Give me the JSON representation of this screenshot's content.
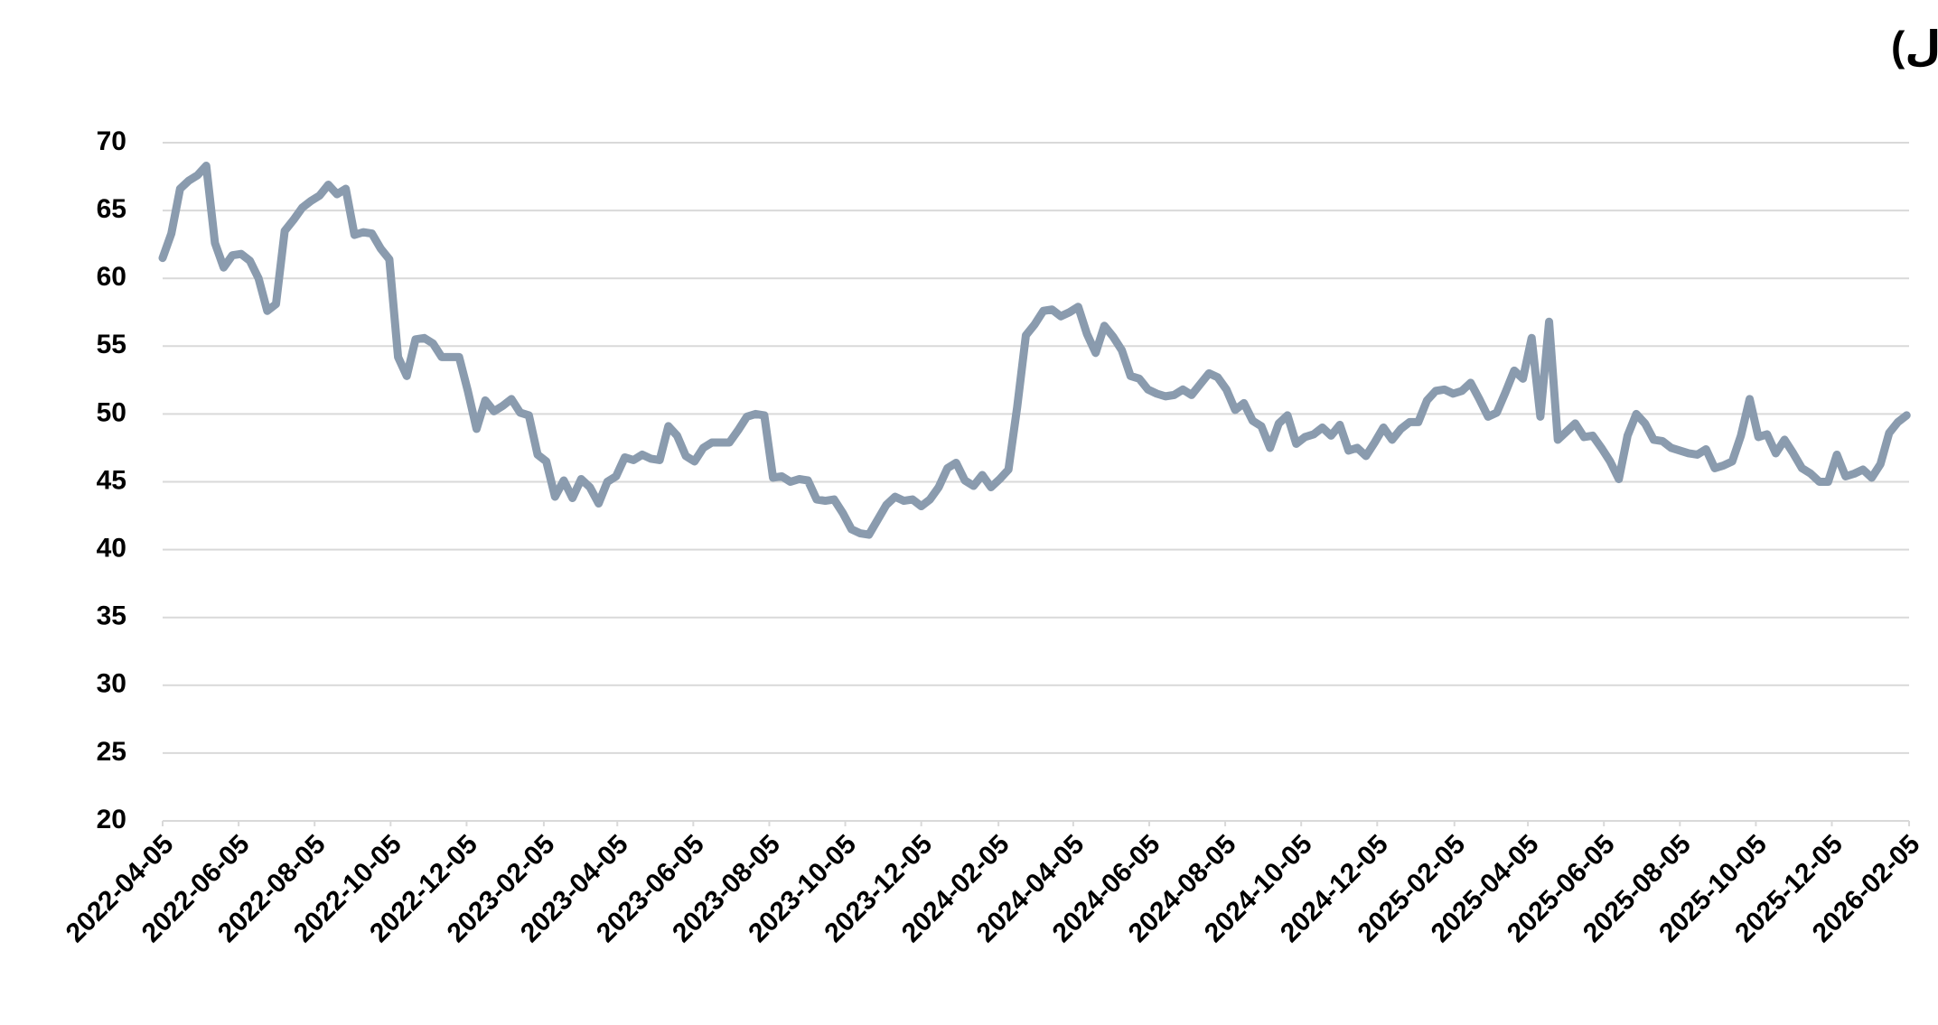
{
  "chart_data": {
    "type": "line",
    "title": "تطور حصة ملكية المستثمرين الأجانب المؤسسين في سوق الأسهم السعودي (مليار ريال)",
    "x": [
      "2022-04-05",
      "2022-04-12",
      "2022-04-19",
      "2022-04-26",
      "2022-05-03",
      "2022-05-10",
      "2022-05-17",
      "2022-05-24",
      "2022-05-31",
      "2022-06-07",
      "2022-06-14",
      "2022-06-21",
      "2022-06-28",
      "2022-07-05",
      "2022-07-12",
      "2022-07-19",
      "2022-07-26",
      "2022-08-02",
      "2022-08-09",
      "2022-08-16",
      "2022-08-23",
      "2022-08-30",
      "2022-09-06",
      "2022-09-13",
      "2022-09-20",
      "2022-09-27",
      "2022-10-04",
      "2022-10-11",
      "2022-10-18",
      "2022-10-25",
      "2022-11-01",
      "2022-11-08",
      "2022-11-15",
      "2022-11-22",
      "2022-11-29",
      "2022-12-06",
      "2022-12-13",
      "2022-12-20",
      "2022-12-27",
      "2023-01-03",
      "2023-01-10",
      "2023-01-17",
      "2023-01-24",
      "2023-01-31",
      "2023-02-07",
      "2023-02-14",
      "2023-02-21",
      "2023-02-28",
      "2023-03-07",
      "2023-03-14",
      "2023-03-21",
      "2023-03-28",
      "2023-04-04",
      "2023-04-11",
      "2023-04-18",
      "2023-04-25",
      "2023-05-02",
      "2023-05-09",
      "2023-05-16",
      "2023-05-23",
      "2023-05-30",
      "2023-06-06",
      "2023-06-13",
      "2023-06-20",
      "2023-06-27",
      "2023-07-04",
      "2023-07-11",
      "2023-07-18",
      "2023-07-25",
      "2023-08-01",
      "2023-08-08",
      "2023-08-15",
      "2023-08-22",
      "2023-08-29",
      "2023-09-05",
      "2023-09-12",
      "2023-09-19",
      "2023-09-26",
      "2023-10-03",
      "2023-10-10",
      "2023-10-17",
      "2023-10-24",
      "2023-10-31",
      "2023-11-07",
      "2023-11-14",
      "2023-11-21",
      "2023-11-28",
      "2023-12-05",
      "2023-12-12",
      "2023-12-19",
      "2023-12-26",
      "2024-01-02",
      "2024-01-09",
      "2024-01-16",
      "2024-01-23",
      "2024-01-30",
      "2024-02-06",
      "2024-02-13",
      "2024-02-20",
      "2024-02-27",
      "2024-03-05",
      "2024-03-12",
      "2024-03-19",
      "2024-03-26",
      "2024-04-02",
      "2024-04-09",
      "2024-04-16",
      "2024-04-23",
      "2024-04-30",
      "2024-05-07",
      "2024-05-14",
      "2024-05-21",
      "2024-05-28",
      "2024-06-04",
      "2024-06-11",
      "2024-06-18",
      "2024-06-25",
      "2024-07-02",
      "2024-07-09",
      "2024-07-16",
      "2024-07-23",
      "2024-07-30",
      "2024-08-06",
      "2024-08-13",
      "2024-08-20",
      "2024-08-27",
      "2024-09-03",
      "2024-09-10",
      "2024-09-17",
      "2024-09-24",
      "2024-10-01",
      "2024-10-08",
      "2024-10-15",
      "2024-10-22",
      "2024-10-29",
      "2024-11-05",
      "2024-11-12",
      "2024-11-19",
      "2024-11-26",
      "2024-12-03",
      "2024-12-10",
      "2024-12-17",
      "2024-12-24",
      "2024-12-31",
      "2025-01-07",
      "2025-01-14",
      "2025-01-21",
      "2025-01-28",
      "2025-02-04",
      "2025-02-11",
      "2025-02-18",
      "2025-02-25",
      "2025-03-04",
      "2025-03-11",
      "2025-03-18",
      "2025-03-25",
      "2025-04-01",
      "2025-04-08",
      "2025-04-15",
      "2025-04-22",
      "2025-04-29",
      "2025-05-06",
      "2025-05-13",
      "2025-05-20",
      "2025-05-27",
      "2025-06-03",
      "2025-06-10",
      "2025-06-17",
      "2025-06-24",
      "2025-07-01",
      "2025-07-08",
      "2025-07-15",
      "2025-07-22",
      "2025-07-29",
      "2025-08-05",
      "2025-08-12",
      "2025-08-19",
      "2025-08-26",
      "2025-09-02",
      "2025-09-09",
      "2025-09-16",
      "2025-09-23",
      "2025-09-30",
      "2025-10-07",
      "2025-10-14",
      "2025-10-21",
      "2025-10-28",
      "2025-11-04",
      "2025-11-11",
      "2025-11-18",
      "2025-11-25",
      "2025-12-02",
      "2025-12-09",
      "2025-12-16",
      "2025-12-23",
      "2025-12-30",
      "2026-01-06",
      "2026-01-13",
      "2026-01-20",
      "2026-01-27",
      "2026-02-03"
    ],
    "series": [
      {
        "color": "#8a9bae",
        "values": [
          61.5,
          63.3,
          66.6,
          67.2,
          67.6,
          68.3,
          62.6,
          60.8,
          61.7,
          61.8,
          61.3,
          60,
          57.6,
          58.1,
          63.5,
          64.3,
          65.2,
          65.7,
          66.1,
          66.9,
          66.2,
          66.6,
          63.2,
          63.4,
          63.3,
          62.2,
          61.4,
          54.2,
          52.8,
          55.5,
          55.6,
          55.2,
          54.2,
          54.2,
          54.2,
          51.7,
          48.9,
          51,
          50.2,
          50.6,
          51.1,
          50.1,
          49.9,
          47,
          46.5,
          43.9,
          45.1,
          43.8,
          45.2,
          44.6,
          43.4,
          45,
          45.4,
          46.8,
          46.6,
          47,
          46.7,
          46.6,
          49.1,
          48.4,
          46.9,
          46.5,
          47.5,
          47.9,
          47.9,
          47.9,
          48.8,
          49.8,
          50,
          49.9,
          45.3,
          45.4,
          45,
          45.2,
          45.1,
          43.7,
          43.6,
          43.7,
          42.7,
          41.5,
          41.2,
          41.1,
          42.2,
          43.3,
          43.9,
          43.6,
          43.7,
          43.2,
          43.7,
          44.6,
          46,
          46.4,
          45.1,
          44.7,
          45.5,
          44.6,
          45.2,
          45.9,
          50.5,
          55.8,
          56.6,
          57.6,
          57.7,
          57.2,
          57.5,
          57.9,
          55.9,
          54.5,
          56.5,
          55.7,
          54.7,
          52.8,
          52.6,
          51.8,
          51.5,
          51.3,
          51.4,
          51.8,
          51.4,
          52.2,
          53,
          52.7,
          51.8,
          50.3,
          50.8,
          49.5,
          49.1,
          47.5,
          49.3,
          49.9,
          47.8,
          48.3,
          48.5,
          49,
          48.4,
          49.2,
          47.3,
          47.5,
          46.9,
          47.9,
          49,
          48.1,
          48.9,
          49.4,
          49.4,
          51,
          51.7,
          51.8,
          51.5,
          51.7,
          52.3,
          51.1,
          49.8,
          50.1,
          51.6,
          53.2,
          52.6,
          55.6,
          49.8,
          56.8,
          48.1,
          48.7,
          49.3,
          48.3,
          48.4,
          47.5,
          46.5,
          45.2,
          48.4,
          50,
          49.3,
          48.1,
          48,
          47.5,
          47.3,
          47.1,
          47,
          47.4,
          46,
          46.2,
          46.5,
          48.4,
          51.1,
          48.3,
          48.5,
          47.1,
          48.1,
          47.1,
          46,
          45.6,
          45,
          45,
          47,
          45.4,
          45.6,
          45.9,
          45.3,
          46.3,
          48.6,
          49.4,
          49.9
        ]
      }
    ],
    "xlim": [
      "2022-04-05",
      "2026-02-05"
    ],
    "xticks": [
      "2022-04-05",
      "2022-06-05",
      "2022-08-05",
      "2022-10-05",
      "2022-12-05",
      "2023-02-05",
      "2023-04-05",
      "2023-06-05",
      "2023-08-05",
      "2023-10-05",
      "2023-12-05",
      "2024-02-05",
      "2024-04-05",
      "2024-06-05",
      "2024-08-05",
      "2024-10-05",
      "2024-12-05",
      "2025-02-05",
      "2025-04-05",
      "2025-06-05",
      "2025-08-05",
      "2025-10-05",
      "2025-12-05",
      "2026-02-05"
    ],
    "ylim": [
      20,
      70
    ],
    "yticks": [
      20,
      25,
      30,
      35,
      40,
      45,
      50,
      55,
      60,
      65,
      70
    ],
    "grid": true
  }
}
